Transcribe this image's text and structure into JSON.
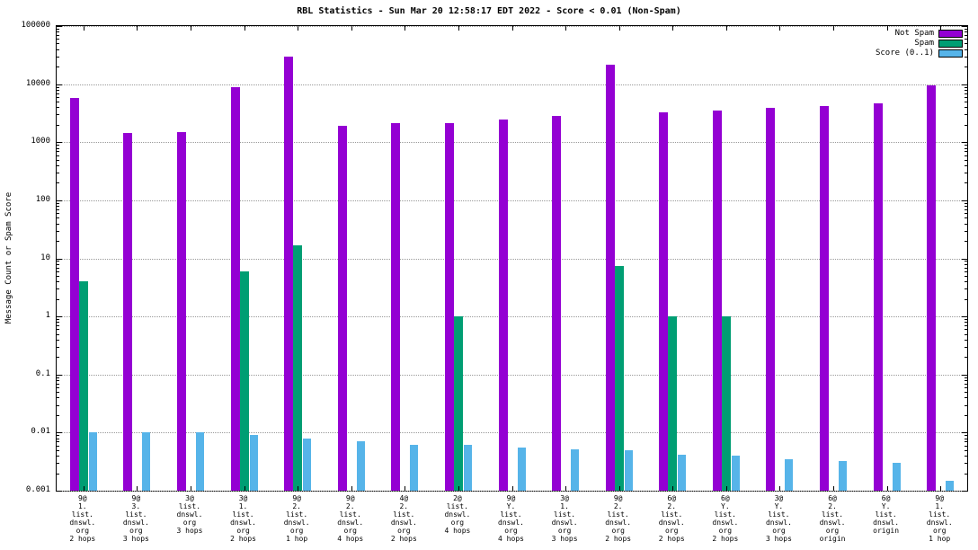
{
  "title": "RBL Statistics - Sun Mar 20 12:58:17 EDT 2022 - Score < 0.01 (Non-Spam)",
  "ylabel": "Message Count or Spam Score",
  "colors": {
    "not_spam": "#9400d3",
    "spam": "#009e73",
    "score": "#56b4e9",
    "grid": "#9a9a9a",
    "border": "#000000",
    "background": "#ffffff"
  },
  "legend": [
    {
      "label": "Not Spam",
      "color": "#9400d3"
    },
    {
      "label": "Spam",
      "color": "#009e73"
    },
    {
      "label": "Score (0..1)",
      "color": "#56b4e9"
    }
  ],
  "chart_data": {
    "type": "bar",
    "title": "RBL Statistics - Sun Mar 20 12:58:17 EDT 2022 - Score < 0.01 (Non-Spam)",
    "xlabel": "",
    "ylabel": "Message Count or Spam Score",
    "y_scale": "log",
    "ylim": [
      0.001,
      100000
    ],
    "y_ticks": [
      "100000",
      "10000",
      "1000",
      "100",
      "10",
      "1",
      "0.1",
      "0.01",
      "0.001"
    ],
    "grid": true,
    "legend_position": "top-right",
    "categories": [
      [
        "9@",
        "1.",
        "list.",
        "dnswl.",
        "org",
        "2 hops"
      ],
      [
        "9@",
        "3.",
        "list.",
        "dnswl.",
        "org",
        "3 hops"
      ],
      [
        "3@",
        "list.",
        "dnswl.",
        "org",
        "3 hops"
      ],
      [
        "3@",
        "1.",
        "list.",
        "dnswl.",
        "org",
        "2 hops"
      ],
      [
        "9@",
        "2.",
        "list.",
        "dnswl.",
        "org",
        "1 hop"
      ],
      [
        "9@",
        "2.",
        "list.",
        "dnswl.",
        "org",
        "4 hops"
      ],
      [
        "4@",
        "2.",
        "list.",
        "dnswl.",
        "org",
        "2 hops"
      ],
      [
        "2@",
        "list.",
        "dnswl.",
        "org",
        "4 hops"
      ],
      [
        "9@",
        "Y.",
        "list.",
        "dnswl.",
        "org",
        "4 hops"
      ],
      [
        "3@",
        "1.",
        "list.",
        "dnswl.",
        "org",
        "3 hops"
      ],
      [
        "9@",
        "2.",
        "list.",
        "dnswl.",
        "org",
        "2 hops"
      ],
      [
        "6@",
        "2.",
        "list.",
        "dnswl.",
        "org",
        "2 hops"
      ],
      [
        "6@",
        "Y.",
        "list.",
        "dnswl.",
        "org",
        "2 hops"
      ],
      [
        "3@",
        "Y.",
        "list.",
        "dnswl.",
        "org",
        "3 hops"
      ],
      [
        "6@",
        "2.",
        "list.",
        "dnswl.",
        "org",
        "origin"
      ],
      [
        "6@",
        "Y.",
        "list.",
        "dnswl.",
        "origin"
      ],
      [
        "9@",
        "1.",
        "list.",
        "dnswl.",
        "org",
        "1 hop"
      ]
    ],
    "series": [
      {
        "name": "Not Spam",
        "color": "#9400d3",
        "values": [
          5800,
          1450,
          1500,
          9000,
          30000,
          1900,
          2150,
          2150,
          2500,
          2800,
          22000,
          3250,
          3500,
          3900,
          4200,
          4600,
          9500
        ]
      },
      {
        "name": "Spam",
        "color": "#009e73",
        "values": [
          4,
          null,
          null,
          6,
          17,
          null,
          null,
          1,
          null,
          null,
          7.5,
          1,
          1,
          null,
          null,
          null,
          null
        ]
      },
      {
        "name": "Score (0..1)",
        "color": "#56b4e9",
        "values": [
          0.01,
          0.01,
          0.01,
          0.0092,
          0.008,
          0.0072,
          0.0062,
          0.0062,
          0.0056,
          0.0051,
          0.005,
          0.0042,
          0.004,
          0.0035,
          0.0032,
          0.003,
          0.0015
        ]
      }
    ]
  }
}
